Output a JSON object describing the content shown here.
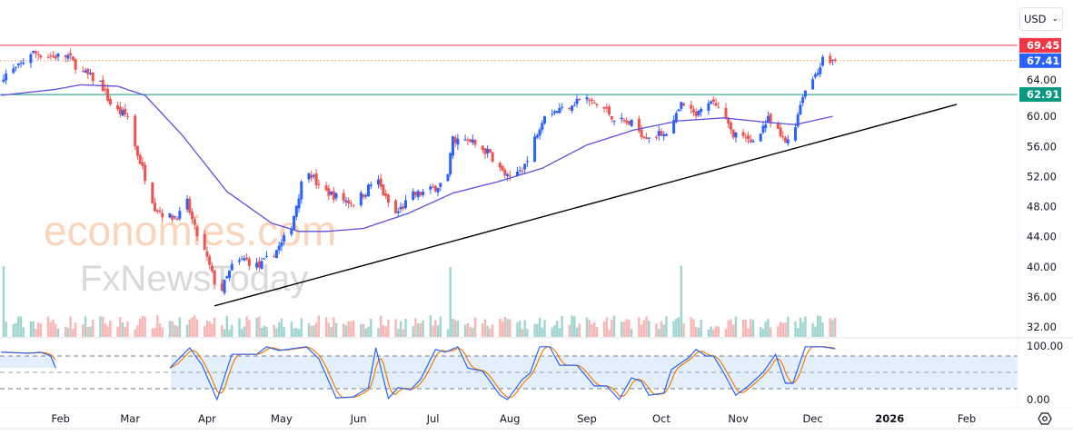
{
  "currency_selector": {
    "label": "USD",
    "icon": "chevron-down-icon"
  },
  "settings_icon": "gear-icon",
  "watermark": {
    "line1": "economies.com",
    "line2": "FxNewsToday"
  },
  "colors": {
    "up": "#2962ff",
    "down": "#ef5350",
    "vol_up": "#9fd4cf",
    "vol_down": "#f7b6b4",
    "resistance": "#f23645",
    "support": "#089981",
    "current": "#2962ff",
    "ma": "#5b4fe0",
    "trendline": "#000000",
    "stoch_k": "#2962ff",
    "stoch_d": "#f57c00",
    "stoch_band": "#e3f0fc"
  },
  "chart_data": {
    "type": "candlestick",
    "price_axis": {
      "ticks": [
        "64.00",
        "60.00",
        "56.00",
        "52.00",
        "48.00",
        "44.00",
        "40.00",
        "36.00",
        "32.00"
      ],
      "range": [
        32,
        70
      ]
    },
    "time_axis": {
      "labels": [
        {
          "label": "Feb",
          "date": "2025-02-01"
        },
        {
          "label": "Mar",
          "date": "2025-03-01"
        },
        {
          "label": "Apr",
          "date": "2025-04-01"
        },
        {
          "label": "May",
          "date": "2025-05-01"
        },
        {
          "label": "Jun",
          "date": "2025-06-01"
        },
        {
          "label": "Jul",
          "date": "2025-07-01"
        },
        {
          "label": "Aug",
          "date": "2025-08-01"
        },
        {
          "label": "Sep",
          "date": "2025-09-01"
        },
        {
          "label": "Oct",
          "date": "2025-10-01"
        },
        {
          "label": "Nov",
          "date": "2025-11-01"
        },
        {
          "label": "Dec",
          "date": "2025-12-01"
        },
        {
          "label": "2026",
          "date": "2026-01-01"
        },
        {
          "label": "Feb",
          "date": "2026-02-01"
        }
      ]
    },
    "levels": [
      {
        "name": "resistance",
        "value": 69.45,
        "label": "69.45",
        "style": "solid"
      },
      {
        "name": "current-price",
        "value": 67.41,
        "label": "67.41",
        "style": "dotted"
      },
      {
        "name": "support",
        "value": 62.91,
        "label": "62.91",
        "style": "solid"
      }
    ],
    "close_path": [
      [
        "2025-01-09",
        65.5
      ],
      [
        "2025-01-15",
        66.5
      ],
      [
        "2025-01-20",
        68.5
      ],
      [
        "2025-01-28",
        68
      ],
      [
        "2025-02-04",
        68
      ],
      [
        "2025-02-09",
        66
      ],
      [
        "2025-02-17",
        64.5
      ],
      [
        "2025-02-22",
        61
      ],
      [
        "2025-02-28",
        60
      ],
      [
        "2025-03-03",
        56
      ],
      [
        "2025-03-07",
        52
      ],
      [
        "2025-03-11",
        48
      ],
      [
        "2025-03-16",
        46.5
      ],
      [
        "2025-03-22",
        47
      ],
      [
        "2025-03-24",
        48.5
      ],
      [
        "2025-03-27",
        45
      ],
      [
        "2025-03-31",
        42
      ],
      [
        "2025-04-04",
        38
      ],
      [
        "2025-04-05",
        35.5
      ],
      [
        "2025-04-07",
        37
      ],
      [
        "2025-04-11",
        40
      ],
      [
        "2025-04-16",
        41
      ],
      [
        "2025-04-22",
        40
      ],
      [
        "2025-04-27",
        41.5
      ],
      [
        "2025-05-01",
        43
      ],
      [
        "2025-05-05",
        45.5
      ],
      [
        "2025-05-09",
        51
      ],
      [
        "2025-05-12",
        53
      ],
      [
        "2025-05-16",
        50.5
      ],
      [
        "2025-05-25",
        49
      ],
      [
        "2025-05-30",
        48.5
      ],
      [
        "2025-06-04",
        50
      ],
      [
        "2025-06-08",
        52
      ],
      [
        "2025-06-12",
        49
      ],
      [
        "2025-06-16",
        47
      ],
      [
        "2025-06-23",
        49.5
      ],
      [
        "2025-06-29",
        50
      ],
      [
        "2025-07-04",
        51
      ],
      [
        "2025-07-07",
        52
      ],
      [
        "2025-07-09",
        57
      ],
      [
        "2025-07-17",
        56.5
      ],
      [
        "2025-07-24",
        55
      ],
      [
        "2025-07-28",
        53
      ],
      [
        "2025-08-01",
        51.5
      ],
      [
        "2025-08-08",
        54
      ],
      [
        "2025-08-12",
        58
      ],
      [
        "2025-08-15",
        60.5
      ],
      [
        "2025-08-22",
        61
      ],
      [
        "2025-08-30",
        62.5
      ],
      [
        "2025-09-08",
        61
      ],
      [
        "2025-09-13",
        59.5
      ],
      [
        "2025-09-19",
        59
      ],
      [
        "2025-09-24",
        57.5
      ],
      [
        "2025-09-30",
        57.5
      ],
      [
        "2025-10-05",
        58.5
      ],
      [
        "2025-10-09",
        61.5
      ],
      [
        "2025-10-15",
        60
      ],
      [
        "2025-10-22",
        62
      ],
      [
        "2025-10-26",
        60
      ],
      [
        "2025-10-29",
        58
      ],
      [
        "2025-11-06",
        56.5
      ],
      [
        "2025-11-13",
        59.5
      ],
      [
        "2025-11-20",
        56.5
      ],
      [
        "2025-11-24",
        59
      ],
      [
        "2025-11-27",
        63
      ],
      [
        "2025-12-01",
        65
      ],
      [
        "2025-12-05",
        67.5
      ],
      [
        "2025-12-10",
        67.41
      ]
    ],
    "moving_average": [
      [
        "2025-01-08",
        62.8
      ],
      [
        "2025-01-30",
        63.6
      ],
      [
        "2025-02-09",
        64.2
      ],
      [
        "2025-02-24",
        64
      ],
      [
        "2025-03-07",
        62.8
      ],
      [
        "2025-03-22",
        57.5
      ],
      [
        "2025-04-09",
        50
      ],
      [
        "2025-04-27",
        45.8
      ],
      [
        "2025-05-08",
        44.7
      ],
      [
        "2025-05-19",
        44.7
      ],
      [
        "2025-06-03",
        45.1
      ],
      [
        "2025-06-21",
        47.1
      ],
      [
        "2025-07-09",
        49.8
      ],
      [
        "2025-07-27",
        51.3
      ],
      [
        "2025-08-14",
        53.1
      ],
      [
        "2025-09-01",
        56.2
      ],
      [
        "2025-09-20",
        58.2
      ],
      [
        "2025-10-08",
        59.4
      ],
      [
        "2025-10-26",
        59.8
      ],
      [
        "2025-11-13",
        59.2
      ],
      [
        "2025-11-24",
        58.9
      ],
      [
        "2025-12-09",
        60.0
      ]
    ],
    "trendline": [
      [
        "2025-04-04",
        34.8
      ],
      [
        "2026-01-28",
        61.6
      ]
    ],
    "volume_spikes": [
      "2025-01-09",
      "2025-03-08",
      "2025-04-05",
      "2025-07-08",
      "2025-10-09"
    ],
    "stochastic": {
      "axis_ticks": [
        "100.00",
        "0.00"
      ],
      "bands": [
        80,
        50,
        20
      ],
      "k": [
        [
          [
            "2025-01-08",
            87
          ],
          [
            "2025-01-19",
            85
          ],
          [
            "2025-01-24",
            87
          ],
          [
            "2025-01-28",
            80
          ],
          [
            "2025-01-30",
            58
          ]
        ],
        [
          [
            "2025-03-17",
            58
          ],
          [
            "2025-03-25",
            95
          ],
          [
            "2025-03-30",
            63
          ],
          [
            "2025-04-05",
            0
          ],
          [
            "2025-04-11",
            83
          ],
          [
            "2025-04-21",
            83
          ],
          [
            "2025-04-25",
            97
          ],
          [
            "2025-04-30",
            90
          ],
          [
            "2025-05-11",
            97
          ],
          [
            "2025-05-16",
            75
          ],
          [
            "2025-05-23",
            3
          ],
          [
            "2025-05-30",
            5
          ],
          [
            "2025-06-05",
            22
          ],
          [
            "2025-06-08",
            95
          ],
          [
            "2025-06-13",
            2
          ],
          [
            "2025-06-17",
            22
          ],
          [
            "2025-06-22",
            18
          ],
          [
            "2025-06-26",
            37
          ],
          [
            "2025-07-02",
            92
          ],
          [
            "2025-07-06",
            87
          ],
          [
            "2025-07-11",
            97
          ],
          [
            "2025-07-15",
            58
          ],
          [
            "2025-07-21",
            52
          ],
          [
            "2025-07-28",
            8
          ],
          [
            "2025-07-31",
            0
          ],
          [
            "2025-08-06",
            37
          ],
          [
            "2025-08-09",
            48
          ],
          [
            "2025-08-13",
            97
          ],
          [
            "2025-08-17",
            97
          ],
          [
            "2025-08-21",
            63
          ],
          [
            "2025-08-28",
            63
          ],
          [
            "2025-09-04",
            25
          ],
          [
            "2025-09-09",
            25
          ],
          [
            "2025-09-14",
            0
          ],
          [
            "2025-09-19",
            40
          ],
          [
            "2025-09-23",
            33
          ],
          [
            "2025-09-26",
            8
          ],
          [
            "2025-10-02",
            12
          ],
          [
            "2025-10-05",
            55
          ],
          [
            "2025-10-12",
            77
          ],
          [
            "2025-10-15",
            92
          ],
          [
            "2025-10-19",
            80
          ],
          [
            "2025-10-22",
            80
          ],
          [
            "2025-10-26",
            50
          ],
          [
            "2025-10-31",
            8
          ],
          [
            "2025-11-05",
            25
          ],
          [
            "2025-11-11",
            50
          ],
          [
            "2025-11-16",
            83
          ],
          [
            "2025-11-20",
            30
          ],
          [
            "2025-11-23",
            30
          ],
          [
            "2025-11-28",
            97
          ],
          [
            "2025-12-05",
            97
          ],
          [
            "2025-12-10",
            93
          ]
        ]
      ]
    }
  }
}
